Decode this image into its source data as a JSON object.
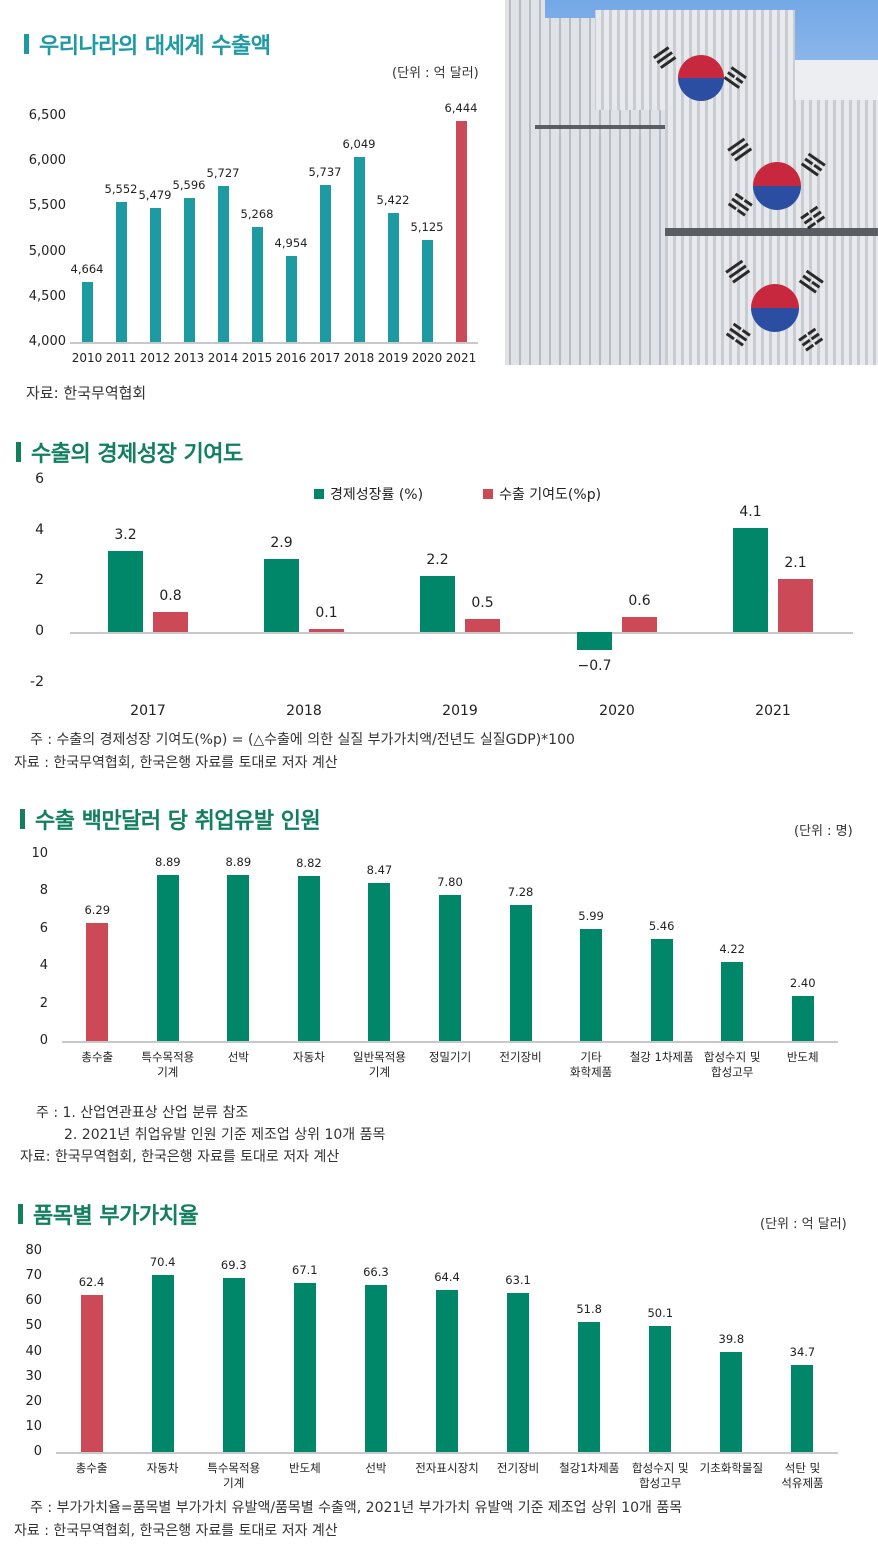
{
  "colors": {
    "teal": "#1e9aa3",
    "green": "#00876a",
    "red": "#cc4a57",
    "axis": "#c8c8c8",
    "title_teal": "#1e9aa3",
    "title_green": "#12805f"
  },
  "section1": {
    "title": "우리나라의 대세계 수출액",
    "unit": "(단위 : 억 달러)",
    "source": "자료: 한국무역협회",
    "y_ticks": [
      "6,500",
      "6,000",
      "5,500",
      "5,000",
      "4,500",
      "4,000"
    ],
    "labels": [
      "4,664",
      "5,552",
      "5,479",
      "5,596",
      "5,727",
      "5,268",
      "4,954",
      "5,737",
      "6,049",
      "5,422",
      "5,125",
      "6,444"
    ],
    "categories": [
      "2010",
      "2011",
      "2012",
      "2013",
      "2014",
      "2015",
      "2016",
      "2017",
      "2018",
      "2019",
      "2020",
      "2021"
    ]
  },
  "photo": {
    "description": "태극기가 그려진 흰색 수출 컨테이너 더미",
    "icon": "korea-flag-container-photo"
  },
  "section2": {
    "title": "수출의 경제성장 기여도",
    "y_ticks": [
      "6",
      "4",
      "2",
      "0",
      "-2"
    ],
    "legend": [
      {
        "label": "경제성장률 (%)",
        "color": "#00876a"
      },
      {
        "label": "수출 기여도(%p)",
        "color": "#cc4a57"
      }
    ],
    "categories": [
      "2017",
      "2018",
      "2019",
      "2020",
      "2021"
    ],
    "growth_labels": [
      "3.2",
      "2.9",
      "2.2",
      "−0.7",
      "4.1"
    ],
    "contrib_labels": [
      "0.8",
      "0.1",
      "0.5",
      "0.6",
      "2.1"
    ],
    "note": "주 : 수출의 경제성장 기여도(%p) = (△수출에 의한 실질 부가가치액/전년도 실질GDP)*100",
    "source": "자료 : 한국무역협회, 한국은행 자료를 토대로 저자 계산"
  },
  "section3": {
    "title": "수출 백만달러 당 취업유발 인원",
    "unit": "(단위 : 명)",
    "y_ticks": [
      "10",
      "8",
      "6",
      "4",
      "2",
      "0"
    ],
    "categories": [
      "총수출",
      "특수목적용\n기계",
      "선박",
      "자동차",
      "일반목적용\n기계",
      "정밀기기",
      "전기장비",
      "기타\n화학제품",
      "철강 1차제품",
      "합성수지 및\n합성고무",
      "반도체"
    ],
    "labels": [
      "6.29",
      "8.89",
      "8.89",
      "8.82",
      "8.47",
      "7.80",
      "7.28",
      "5.99",
      "5.46",
      "4.22",
      "2.40"
    ],
    "note1": "주 : 1. 산업연관표상 산업 분류 참조",
    "note2": "2. 2021년 취업유발 인원 기준 제조업 상위 10개 품목",
    "source": "자료: 한국무역협회, 한국은행 자료를 토대로 저자 계산"
  },
  "section4": {
    "title": "품목별 부가가치율",
    "unit": "(단위 : 억 달러)",
    "y_ticks": [
      "80",
      "70",
      "60",
      "50",
      "40",
      "30",
      "20",
      "10",
      "0"
    ],
    "categories": [
      "총수출",
      "자동차",
      "특수목적용\n기계",
      "반도체",
      "선박",
      "전자표시장치",
      "전기장비",
      "철강1차제품",
      "합성수지 및\n합성고무",
      "기초화학물질",
      "석탄 및\n석유제품"
    ],
    "labels": [
      "62.4",
      "70.4",
      "69.3",
      "67.1",
      "66.3",
      "64.4",
      "63.1",
      "51.8",
      "50.1",
      "39.8",
      "34.7"
    ],
    "note": "주 : 부가가치율=품목별 부가가치 유발액/품목별 수출액, 2021년 부가가치 유발액 기준 제조업 상위 10개 품목",
    "source": "자료 : 한국무역협회, 한국은행 자료를 토대로 저자 계산"
  },
  "chart_data": [
    {
      "type": "bar",
      "title": "우리나라의 대세계 수출액",
      "xlabel": "",
      "ylabel": "억 달러",
      "ylim": [
        4000,
        6500
      ],
      "categories": [
        "2010",
        "2011",
        "2012",
        "2013",
        "2014",
        "2015",
        "2016",
        "2017",
        "2018",
        "2019",
        "2020",
        "2021"
      ],
      "values": [
        4664,
        5552,
        5479,
        5596,
        5727,
        5268,
        4954,
        5737,
        6049,
        5422,
        5125,
        6444
      ],
      "highlight": "2021",
      "grid": false
    },
    {
      "type": "bar",
      "title": "수출의 경제성장 기여도",
      "ylim": [
        -2,
        6
      ],
      "categories": [
        "2017",
        "2018",
        "2019",
        "2020",
        "2021"
      ],
      "series": [
        {
          "name": "경제성장률 (%)",
          "values": [
            3.2,
            2.9,
            2.2,
            -0.7,
            4.1
          ]
        },
        {
          "name": "수출 기여도(%p)",
          "values": [
            0.8,
            0.1,
            0.5,
            0.6,
            2.1
          ]
        }
      ],
      "legend_position": "top",
      "grid": false
    },
    {
      "type": "bar",
      "title": "수출 백만달러 당 취업유발 인원",
      "ylabel": "명",
      "ylim": [
        0,
        10
      ],
      "categories": [
        "총수출",
        "특수목적용 기계",
        "선박",
        "자동차",
        "일반목적용 기계",
        "정밀기기",
        "전기장비",
        "기타 화학제품",
        "철강 1차제품",
        "합성수지 및 합성고무",
        "반도체"
      ],
      "values": [
        6.29,
        8.89,
        8.89,
        8.82,
        8.47,
        7.8,
        7.28,
        5.99,
        5.46,
        4.22,
        2.4
      ],
      "highlight": "총수출",
      "grid": false
    },
    {
      "type": "bar",
      "title": "품목별 부가가치율",
      "ylabel": "억 달러",
      "ylim": [
        0,
        80
      ],
      "categories": [
        "총수출",
        "자동차",
        "특수목적용 기계",
        "반도체",
        "선박",
        "전자표시장치",
        "전기장비",
        "철강1차제품",
        "합성수지 및 합성고무",
        "기초화학물질",
        "석탄 및 석유제품"
      ],
      "values": [
        62.4,
        70.4,
        69.3,
        67.1,
        66.3,
        64.4,
        63.1,
        51.8,
        50.1,
        39.8,
        34.7
      ],
      "highlight": "총수출",
      "grid": false
    }
  ]
}
